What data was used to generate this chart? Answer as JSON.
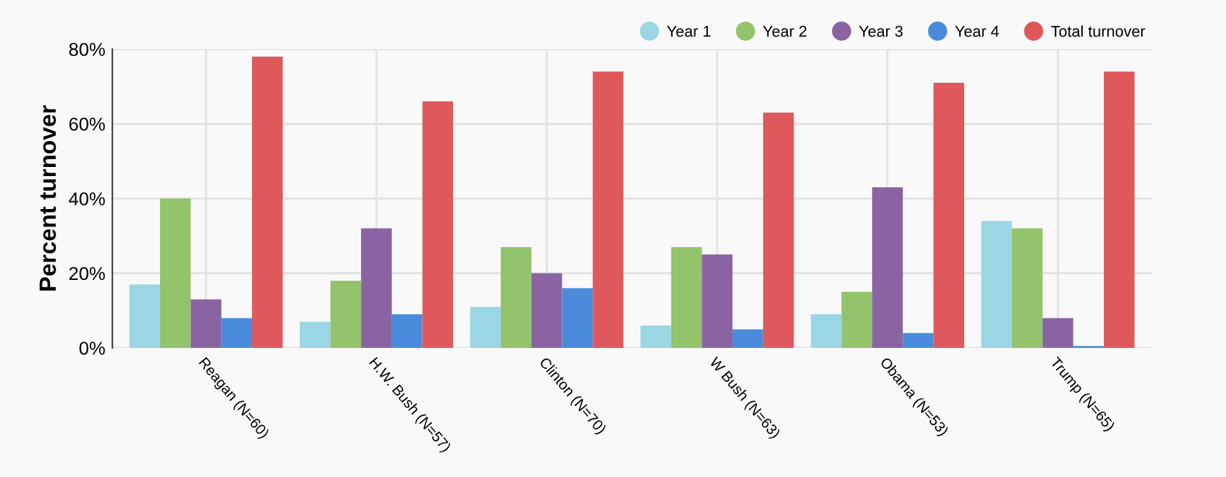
{
  "chart_data": {
    "type": "bar",
    "ylabel": "Percent turnover",
    "categories": [
      "Reagan (N=60)",
      "H.W. Bush (N=57)",
      "Clinton (N=70)",
      "W Bush (N=63)",
      "Obama (N=53)",
      "Trump (N=65)"
    ],
    "series": [
      {
        "name": "Year 1",
        "color": "#9ad6e4",
        "values": [
          17,
          7,
          11,
          6,
          9,
          34
        ]
      },
      {
        "name": "Year 2",
        "color": "#93c36a",
        "values": [
          40,
          18,
          27,
          27,
          15,
          32
        ]
      },
      {
        "name": "Year 3",
        "color": "#8a64a2",
        "values": [
          13,
          32,
          20,
          25,
          43,
          8
        ]
      },
      {
        "name": "Year 4",
        "color": "#4a8cdb",
        "values": [
          8,
          9,
          16,
          5,
          4,
          0.5
        ]
      },
      {
        "name": "Total turnover",
        "color": "#df585c",
        "values": [
          78,
          66,
          74,
          63,
          71,
          74
        ]
      }
    ],
    "ylim": [
      0,
      80
    ],
    "yticks": [
      {
        "value": 0,
        "label": "0%"
      },
      {
        "value": 20,
        "label": "20%"
      },
      {
        "value": 40,
        "label": "40%"
      },
      {
        "value": 60,
        "label": "60%"
      },
      {
        "value": 80,
        "label": "80%"
      }
    ],
    "grid": true,
    "legend": "top right",
    "marker": "circle"
  }
}
